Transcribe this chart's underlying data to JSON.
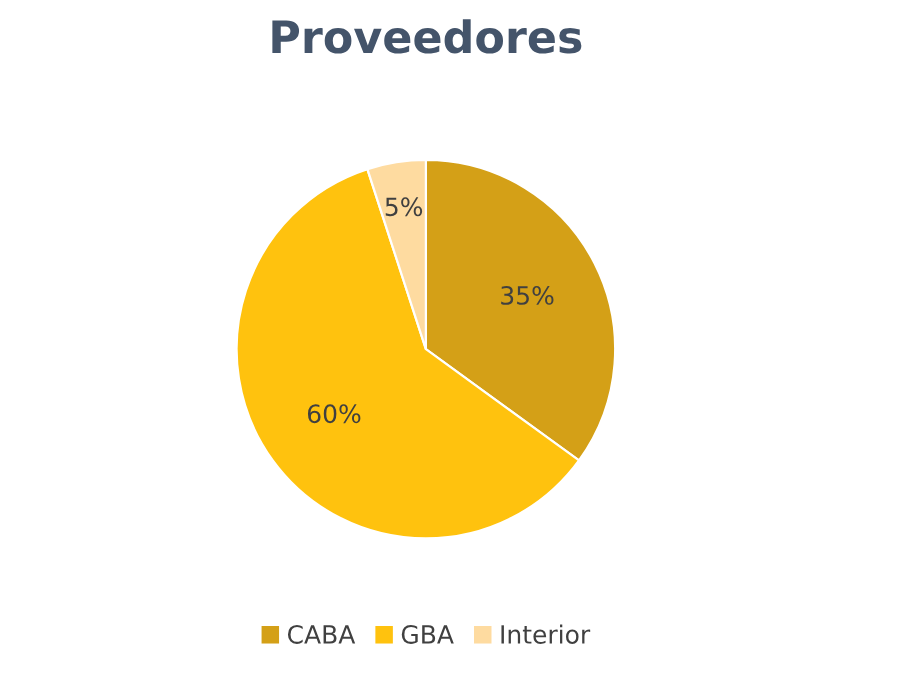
{
  "chart_data": {
    "type": "pie",
    "title": "Proveedores",
    "categories": [
      "CABA",
      "GBA",
      "Interior"
    ],
    "values": [
      35,
      60,
      5
    ],
    "colors": [
      "#d4a017",
      "#ffc20e",
      "#fedba0"
    ],
    "value_labels": [
      "35%",
      "60%",
      "5%"
    ],
    "legend": "bottom"
  }
}
